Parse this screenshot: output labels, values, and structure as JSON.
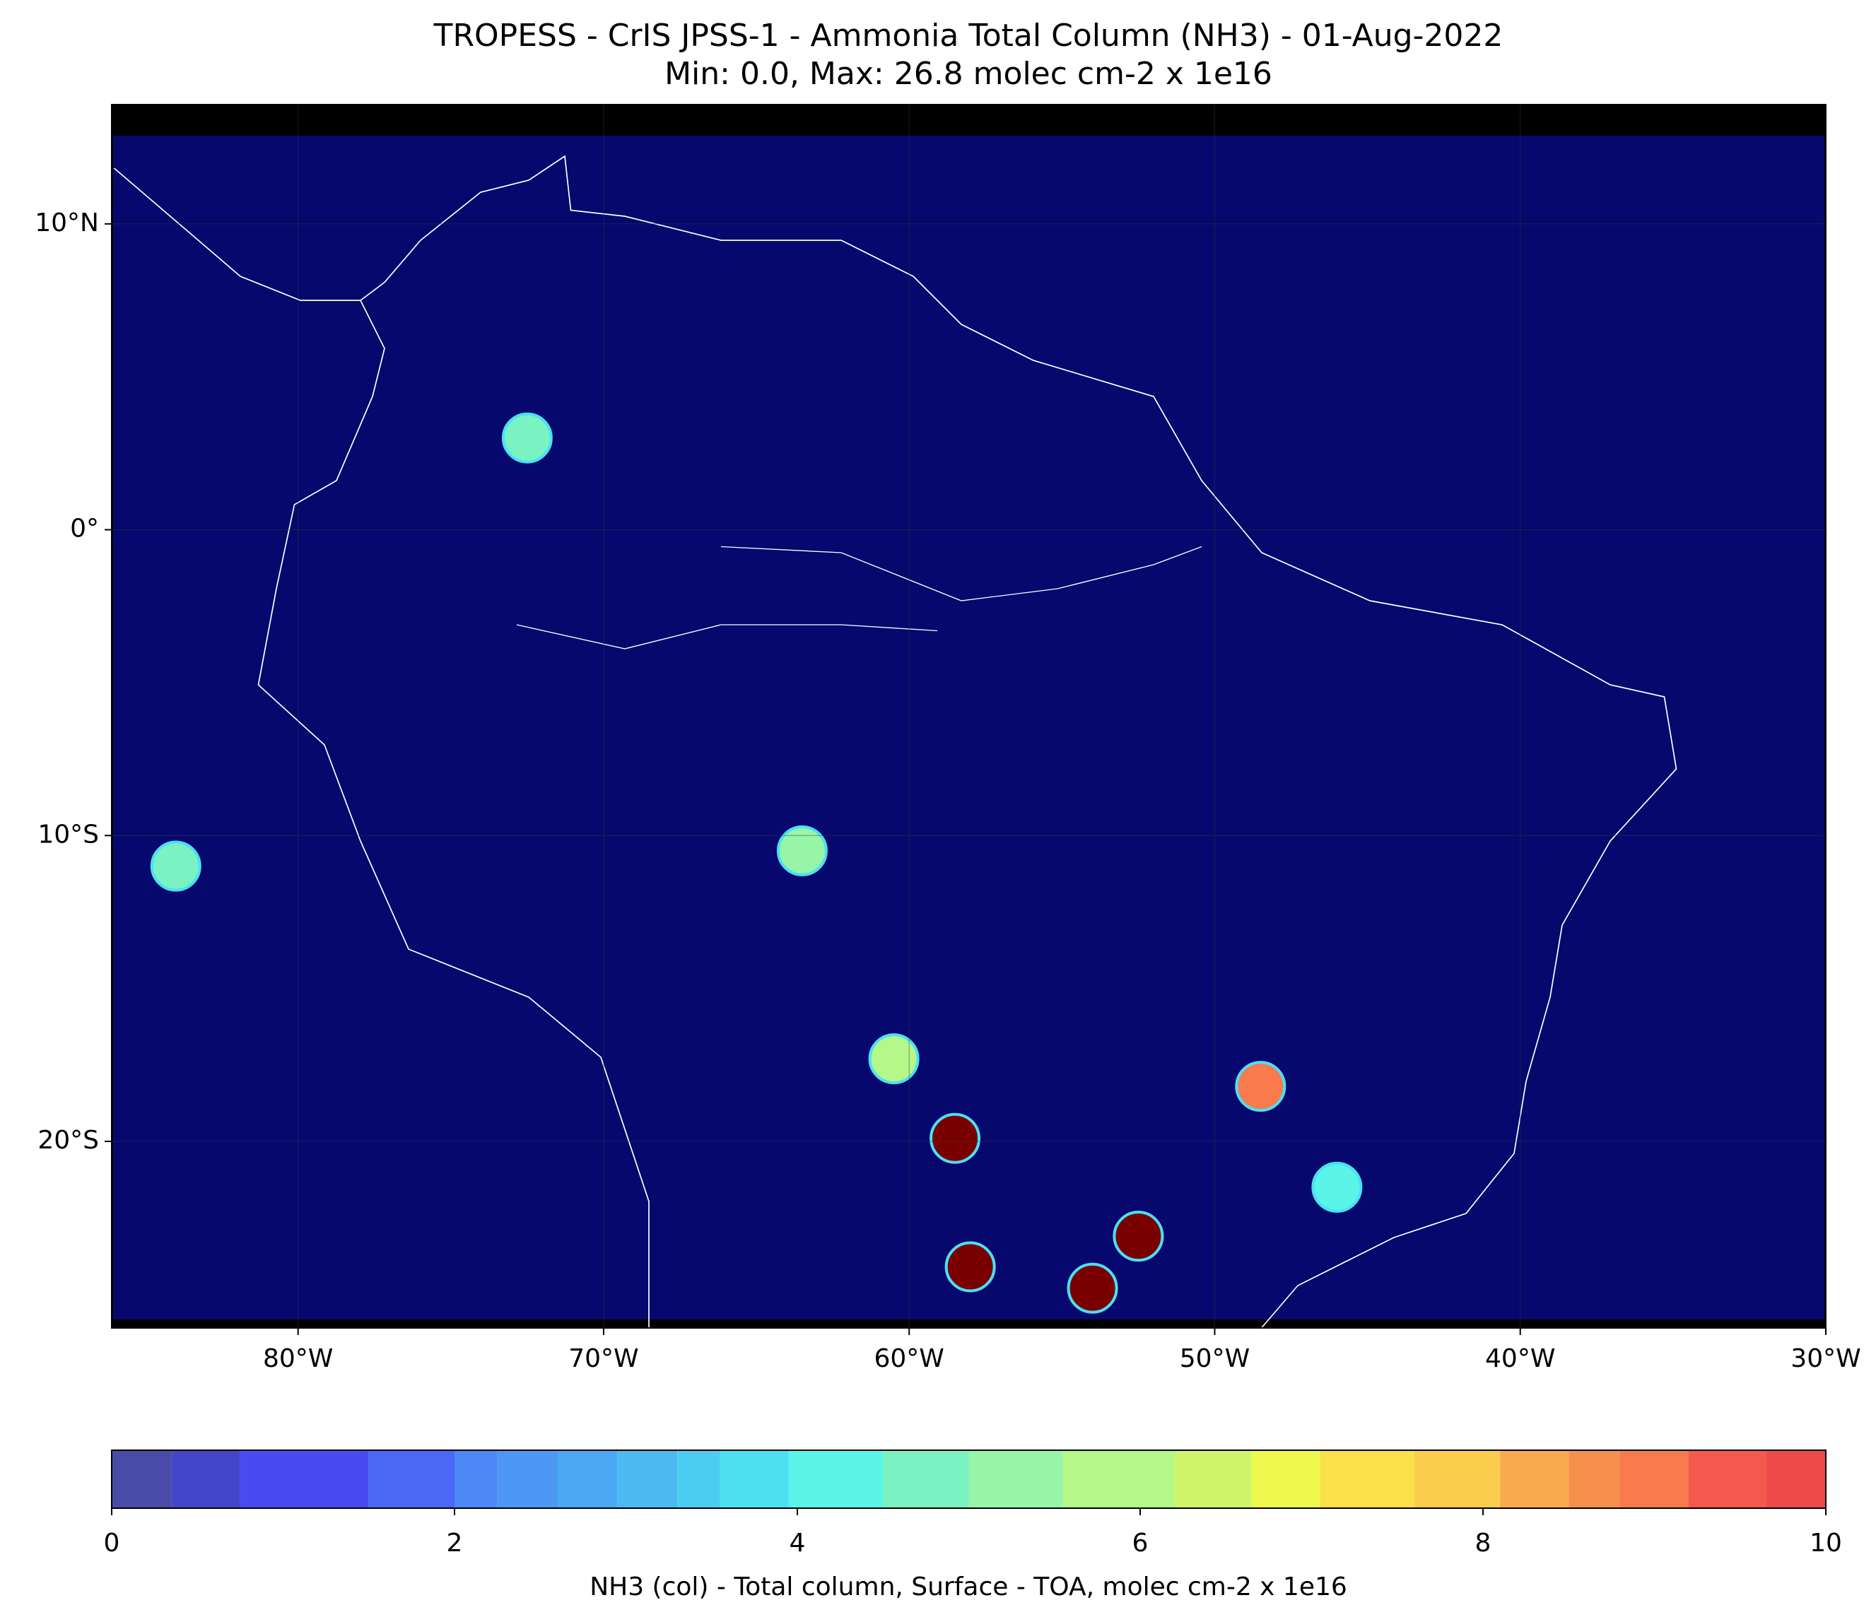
{
  "chart_data": {
    "type": "map",
    "title": "TROPESS - CrIS JPSS-1 - Ammonia Total Column (NH3) - 01-Aug-2022",
    "subtitle": "Min: 0.0, Max: 26.8 molec cm-2 x 1e16",
    "xlim": [
      -86.1,
      -30
    ],
    "ylim": [
      -26.1,
      13.9
    ],
    "xticks": [
      {
        "value": -80,
        "label": "80°W"
      },
      {
        "value": -70,
        "label": "70°W"
      },
      {
        "value": -60,
        "label": "60°W"
      },
      {
        "value": -50,
        "label": "50°W"
      },
      {
        "value": -40,
        "label": "40°W"
      },
      {
        "value": -30,
        "label": "30°W"
      }
    ],
    "yticks": [
      {
        "value": 10,
        "label": "10°N"
      },
      {
        "value": 0,
        "label": "0°"
      },
      {
        "value": -10,
        "label": "10°S"
      },
      {
        "value": -20,
        "label": "20°S"
      }
    ],
    "hotspots": [
      {
        "lon": -52.5,
        "lat": -23.1,
        "value": 12
      },
      {
        "lon": -58,
        "lat": -24.1,
        "value": 11
      },
      {
        "lon": -54,
        "lat": -24.8,
        "value": 11
      },
      {
        "lon": -58.5,
        "lat": -19.9,
        "value": 10.5
      },
      {
        "lon": -48.5,
        "lat": -18.2,
        "value": 9
      },
      {
        "lon": -63.5,
        "lat": -10.5,
        "value": 5.5
      },
      {
        "lon": -60.5,
        "lat": -17.3,
        "value": 6
      },
      {
        "lon": -72.5,
        "lat": 3,
        "value": 4.5
      },
      {
        "lon": -46,
        "lat": -21.5,
        "value": 4
      },
      {
        "lon": -84,
        "lat": -11,
        "value": 4.5
      }
    ],
    "colorbar": {
      "label": "NH3 (col) - Total column, Surface - TOA, molec cm-2 x 1e16",
      "clim": [
        0,
        10
      ],
      "ticks": [
        0,
        2,
        4,
        6,
        8,
        10
      ],
      "levels": [
        0,
        0.35,
        0.75,
        1.5,
        2,
        2.25,
        2.6,
        2.95,
        3.3,
        3.55,
        3.95,
        4.5,
        5,
        5.55,
        6.2,
        6.65,
        7.05,
        7.6,
        8.1,
        8.5,
        8.8,
        9.2,
        9.65,
        10
      ],
      "colors": [
        "#4a4ba8",
        "#4446c9",
        "#4a4af2",
        "#4a68f5",
        "#4d88f7",
        "#4d98f5",
        "#4ba8f3",
        "#4bbaf0",
        "#4bcdf2",
        "#4be0f2",
        "#5af5e8",
        "#7af2c2",
        "#96f5a6",
        "#b4f88a",
        "#d0f56a",
        "#eff84d",
        "#fbe04a",
        "#fbcd4d",
        "#f8aa4d",
        "#f8904d",
        "#f87a4d",
        "#f5584d",
        "#ee4a4a",
        "#a84a4a"
      ]
    }
  }
}
